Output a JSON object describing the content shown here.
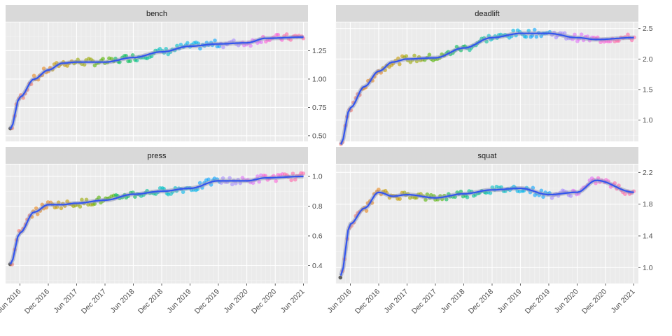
{
  "chart_data": {
    "type": "scatter",
    "layout": "facet-grid 2x2",
    "x_axis_ticks": [
      "Jun 2016",
      "Dec 2016",
      "Jun 2017",
      "Dec 2017",
      "Jun 2018",
      "Dec 2018",
      "Jun 2019",
      "Dec 2019",
      "Jun 2020",
      "Dec 2020",
      "Jun 2021"
    ],
    "x_range": [
      "2016-03-01",
      "2021-06-30"
    ],
    "grid": true,
    "legend": "none",
    "smoother": {
      "color": "#3355ee",
      "band": "#8a8fb0"
    },
    "point_colors": [
      "#f8766d",
      "#e7861b",
      "#c49a00",
      "#99a800",
      "#53b400",
      "#00bc56",
      "#00c094",
      "#00bfc4",
      "#00b6eb",
      "#06a4ff",
      "#a58aff",
      "#df70f8",
      "#fb61d7",
      "#ff66a8"
    ],
    "panels": [
      {
        "title": "bench",
        "yaxis_side": "right",
        "ylim": [
          0.45,
          1.5
        ],
        "yticks": [
          "0.50",
          "0.75",
          "1.00",
          "1.25"
        ],
        "ytick_values": [
          0.5,
          0.75,
          1.0,
          1.25
        ],
        "smooth": [
          [
            "2016-04-01",
            0.56
          ],
          [
            "2016-06-01",
            0.84
          ],
          [
            "2016-09-01",
            1.0
          ],
          [
            "2016-12-01",
            1.08
          ],
          [
            "2017-03-01",
            1.14
          ],
          [
            "2017-06-01",
            1.15
          ],
          [
            "2017-12-01",
            1.15
          ],
          [
            "2018-06-01",
            1.19
          ],
          [
            "2018-12-01",
            1.24
          ],
          [
            "2019-06-01",
            1.29
          ],
          [
            "2019-12-01",
            1.31
          ],
          [
            "2020-06-01",
            1.32
          ],
          [
            "2020-10-01",
            1.36
          ],
          [
            "2021-06-01",
            1.37
          ]
        ]
      },
      {
        "title": "deadlift",
        "yaxis_side": "right",
        "ylim": [
          0.65,
          2.6
        ],
        "yticks": [
          "1.0",
          "1.5",
          "2.0",
          "2.5"
        ],
        "ytick_values": [
          1.0,
          1.5,
          2.0,
          2.5
        ],
        "smooth": [
          [
            "2016-04-01",
            0.6
          ],
          [
            "2016-06-01",
            1.2
          ],
          [
            "2016-09-01",
            1.55
          ],
          [
            "2016-12-01",
            1.8
          ],
          [
            "2017-03-01",
            1.95
          ],
          [
            "2017-06-01",
            2.0
          ],
          [
            "2017-12-01",
            2.02
          ],
          [
            "2018-06-01",
            2.18
          ],
          [
            "2018-12-01",
            2.35
          ],
          [
            "2019-06-01",
            2.42
          ],
          [
            "2019-12-01",
            2.42
          ],
          [
            "2020-06-01",
            2.35
          ],
          [
            "2020-10-01",
            2.32
          ],
          [
            "2021-06-01",
            2.35
          ]
        ]
      },
      {
        "title": "press",
        "yaxis_side": "right",
        "ylim": [
          0.28,
          1.08
        ],
        "yticks": [
          "0.4",
          "0.6",
          "0.8",
          "1.0"
        ],
        "ytick_values": [
          0.4,
          0.6,
          0.8,
          1.0
        ],
        "smooth": [
          [
            "2016-04-01",
            0.41
          ],
          [
            "2016-06-01",
            0.62
          ],
          [
            "2016-09-01",
            0.76
          ],
          [
            "2016-12-01",
            0.81
          ],
          [
            "2017-03-01",
            0.81
          ],
          [
            "2017-06-01",
            0.82
          ],
          [
            "2017-12-01",
            0.84
          ],
          [
            "2018-06-01",
            0.88
          ],
          [
            "2018-12-01",
            0.9
          ],
          [
            "2019-06-01",
            0.92
          ],
          [
            "2019-12-01",
            0.97
          ],
          [
            "2020-06-01",
            0.97
          ],
          [
            "2020-10-01",
            0.99
          ],
          [
            "2021-06-01",
            1.0
          ]
        ]
      },
      {
        "title": "squat",
        "yaxis_side": "right",
        "ylim": [
          0.8,
          2.3
        ],
        "yticks": [
          "1.0",
          "1.4",
          "1.8",
          "2.2"
        ],
        "ytick_values": [
          1.0,
          1.4,
          1.8,
          2.2
        ],
        "smooth": [
          [
            "2016-04-01",
            0.9
          ],
          [
            "2016-06-01",
            1.55
          ],
          [
            "2016-09-01",
            1.75
          ],
          [
            "2016-12-01",
            1.95
          ],
          [
            "2017-03-01",
            1.9
          ],
          [
            "2017-06-01",
            1.92
          ],
          [
            "2017-12-01",
            1.88
          ],
          [
            "2018-06-01",
            1.93
          ],
          [
            "2018-12-01",
            1.98
          ],
          [
            "2019-06-01",
            2.0
          ],
          [
            "2019-12-01",
            1.92
          ],
          [
            "2020-06-01",
            1.95
          ],
          [
            "2020-10-01",
            2.1
          ],
          [
            "2021-06-01",
            1.95
          ]
        ]
      }
    ]
  }
}
